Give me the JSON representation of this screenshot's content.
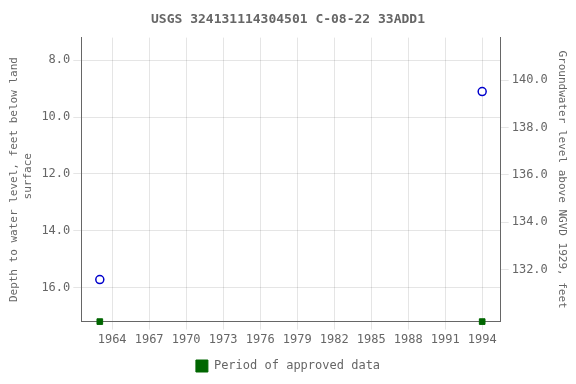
{
  "chart_data": {
    "type": "scatter",
    "title": "USGS 324131114304501 C-08-22 33ADD1",
    "ylabel": "Depth to water level, feet below land\n surface",
    "y2label": "Groundwater level above NGVD 1929, feet",
    "xlim": [
      1961.5,
      1995.5
    ],
    "xticks": [
      1964,
      1967,
      1970,
      1973,
      1976,
      1979,
      1982,
      1985,
      1988,
      1991,
      1994
    ],
    "ylim": [
      17.2,
      7.2
    ],
    "yticks": [
      {
        "value": 8.0,
        "label": "8.0"
      },
      {
        "value": 10.0,
        "label": "10.0"
      },
      {
        "value": 12.0,
        "label": "12.0"
      },
      {
        "value": 14.0,
        "label": "14.0"
      },
      {
        "value": 16.0,
        "label": "16.0"
      }
    ],
    "y2lim": [
      129.8,
      141.8
    ],
    "y2ticks": [
      {
        "value": 132.0,
        "label": "132.0"
      },
      {
        "value": 134.0,
        "label": "134.0"
      },
      {
        "value": 136.0,
        "label": "136.0"
      },
      {
        "value": 138.0,
        "label": "138.0"
      },
      {
        "value": 140.0,
        "label": "140.0"
      }
    ],
    "grid": true,
    "legend": "bottom",
    "series": [
      {
        "color": "#0000cc",
        "marker": "circle",
        "x": [
          1963.0,
          1994.0
        ],
        "values": [
          15.72,
          9.1
        ]
      },
      {
        "name": "Period of approved data",
        "color": "#006600",
        "marker": "square",
        "x": [
          1963.0,
          1994.0
        ],
        "values": [
          17.2,
          17.2
        ]
      }
    ]
  }
}
